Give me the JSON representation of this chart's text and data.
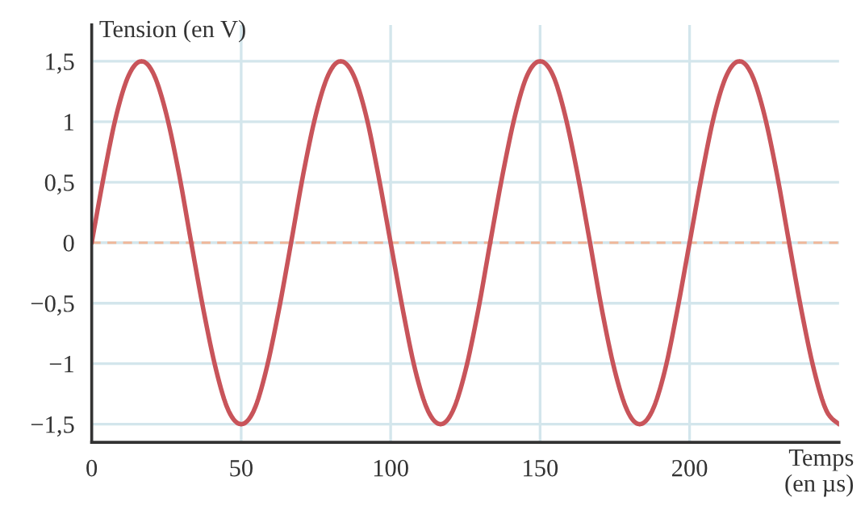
{
  "chart_data": {
    "type": "line",
    "xlabel": "Temps\n(en µs)",
    "ylabel": "Tension (en V)",
    "x": [
      0,
      4.2,
      8.3,
      12.5,
      16.7,
      20.8,
      25,
      29.2,
      33.3,
      37.5,
      41.7,
      45.8,
      50,
      54.2,
      58.3,
      62.5,
      66.7,
      70.8,
      75,
      79.2,
      83.3,
      87.5,
      91.7,
      95.8,
      100,
      104.2,
      108.3,
      112.5,
      116.7,
      120.8,
      125,
      129.2,
      133.3,
      137.5,
      141.7,
      145.8,
      150,
      154.2,
      158.3,
      162.5,
      166.7,
      170.8,
      175,
      179.2,
      183.3,
      187.5,
      191.7,
      195.8,
      200,
      204.2,
      208.3,
      212.5,
      216.7,
      220.8,
      225,
      229.2,
      233.3,
      237.5,
      241.7,
      245.8,
      250
    ],
    "series": [
      {
        "color": "#c8545a",
        "values": [
          0,
          0.57,
          1.06,
          1.39,
          1.5,
          1.39,
          1.06,
          0.57,
          0,
          -0.57,
          -1.06,
          -1.39,
          -1.5,
          -1.39,
          -1.06,
          -0.57,
          0,
          0.57,
          1.06,
          1.39,
          1.5,
          1.39,
          1.06,
          0.57,
          0,
          -0.57,
          -1.06,
          -1.39,
          -1.5,
          -1.39,
          -1.06,
          -0.57,
          0,
          0.57,
          1.06,
          1.39,
          1.5,
          1.39,
          1.06,
          0.57,
          0,
          -0.57,
          -1.06,
          -1.39,
          -1.5,
          -1.39,
          -1.06,
          -0.57,
          0,
          0.57,
          1.06,
          1.39,
          1.5,
          1.39,
          1.06,
          0.57,
          0,
          -0.57,
          -1.06,
          -1.39,
          -1.5
        ]
      }
    ],
    "xlim": [
      0,
      250
    ],
    "ylim": [
      -1.65,
      1.8
    ],
    "xticks": [
      0,
      50,
      100,
      150,
      200
    ],
    "yticks": [
      {
        "value": 1.5,
        "label": "1,5"
      },
      {
        "value": 1,
        "label": "1"
      },
      {
        "value": 0.5,
        "label": "0,5"
      },
      {
        "value": 0,
        "label": "0"
      },
      {
        "value": -0.5,
        "label": "−0,5"
      },
      {
        "value": -1,
        "label": "−1"
      },
      {
        "value": -1.5,
        "label": "−1,5"
      }
    ],
    "ref_lines": [
      {
        "axis": "y",
        "value": 0,
        "color": "#f0b89a",
        "line_style": "dashed"
      }
    ],
    "grid": true,
    "marker": "none",
    "line_style": "solid"
  }
}
